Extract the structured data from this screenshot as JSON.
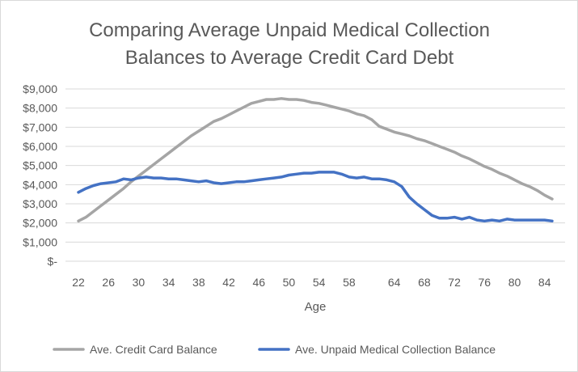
{
  "chart_data": {
    "type": "line",
    "title_lines": [
      "Comparing Average Unpaid Medical Collection",
      "Balances to Average Credit Card Debt"
    ],
    "xlabel": "Age",
    "ylabel": "",
    "xlim": [
      22,
      85
    ],
    "ylim": [
      0,
      9000
    ],
    "x_ticks": [
      22,
      26,
      30,
      34,
      38,
      42,
      46,
      50,
      54,
      58,
      64,
      68,
      72,
      76,
      80,
      84
    ],
    "y_tick_values": [
      0,
      1000,
      2000,
      3000,
      4000,
      5000,
      6000,
      7000,
      8000,
      9000
    ],
    "y_tick_labels": [
      "$-",
      "$1,000",
      "$2,000",
      "$3,000",
      "$4,000",
      "$5,000",
      "$6,000",
      "$7,000",
      "$8,000",
      "$9,000"
    ],
    "grid": true,
    "legend_position": "bottom",
    "series": [
      {
        "name": "Ave. Credit Card Balance",
        "color": "#a5a5a5",
        "x": [
          22,
          23,
          24,
          25,
          26,
          27,
          28,
          29,
          30,
          31,
          32,
          33,
          34,
          35,
          36,
          37,
          38,
          39,
          40,
          41,
          42,
          43,
          44,
          45,
          46,
          47,
          48,
          49,
          50,
          51,
          52,
          53,
          54,
          55,
          56,
          57,
          58,
          59,
          60,
          61,
          62,
          63,
          64,
          65,
          66,
          67,
          68,
          69,
          70,
          71,
          72,
          73,
          74,
          75,
          76,
          77,
          78,
          79,
          80,
          81,
          82,
          83,
          84,
          85
        ],
        "values": [
          2100,
          2300,
          2600,
          2900,
          3200,
          3500,
          3800,
          4150,
          4450,
          4750,
          5050,
          5350,
          5650,
          5950,
          6250,
          6550,
          6800,
          7050,
          7300,
          7450,
          7650,
          7850,
          8050,
          8250,
          8350,
          8450,
          8450,
          8500,
          8450,
          8450,
          8400,
          8300,
          8250,
          8150,
          8050,
          7950,
          7850,
          7700,
          7600,
          7400,
          7050,
          6900,
          6750,
          6650,
          6550,
          6400,
          6300,
          6150,
          6000,
          5850,
          5700,
          5500,
          5350,
          5150,
          4950,
          4800,
          4600,
          4450,
          4250,
          4050,
          3900,
          3700,
          3450,
          3250
        ]
      },
      {
        "name": "Ave. Unpaid Medical Collection Balance",
        "color": "#4472c4",
        "x": [
          22,
          23,
          24,
          25,
          26,
          27,
          28,
          29,
          30,
          31,
          32,
          33,
          34,
          35,
          36,
          37,
          38,
          39,
          40,
          41,
          42,
          43,
          44,
          45,
          46,
          47,
          48,
          49,
          50,
          51,
          52,
          53,
          54,
          55,
          56,
          57,
          58,
          59,
          60,
          61,
          62,
          63,
          64,
          65,
          66,
          67,
          68,
          69,
          70,
          71,
          72,
          73,
          74,
          75,
          76,
          77,
          78,
          79,
          80,
          81,
          82,
          83,
          84,
          85
        ],
        "values": [
          3600,
          3800,
          3950,
          4050,
          4100,
          4150,
          4300,
          4250,
          4350,
          4400,
          4350,
          4350,
          4300,
          4300,
          4250,
          4200,
          4150,
          4200,
          4100,
          4050,
          4100,
          4150,
          4150,
          4200,
          4250,
          4300,
          4350,
          4400,
          4500,
          4550,
          4600,
          4600,
          4650,
          4650,
          4650,
          4550,
          4400,
          4350,
          4400,
          4300,
          4300,
          4250,
          4150,
          3900,
          3350,
          3000,
          2700,
          2400,
          2250,
          2250,
          2300,
          2200,
          2300,
          2150,
          2100,
          2150,
          2100,
          2200,
          2150,
          2150,
          2150,
          2150,
          2150,
          2100
        ]
      }
    ]
  }
}
